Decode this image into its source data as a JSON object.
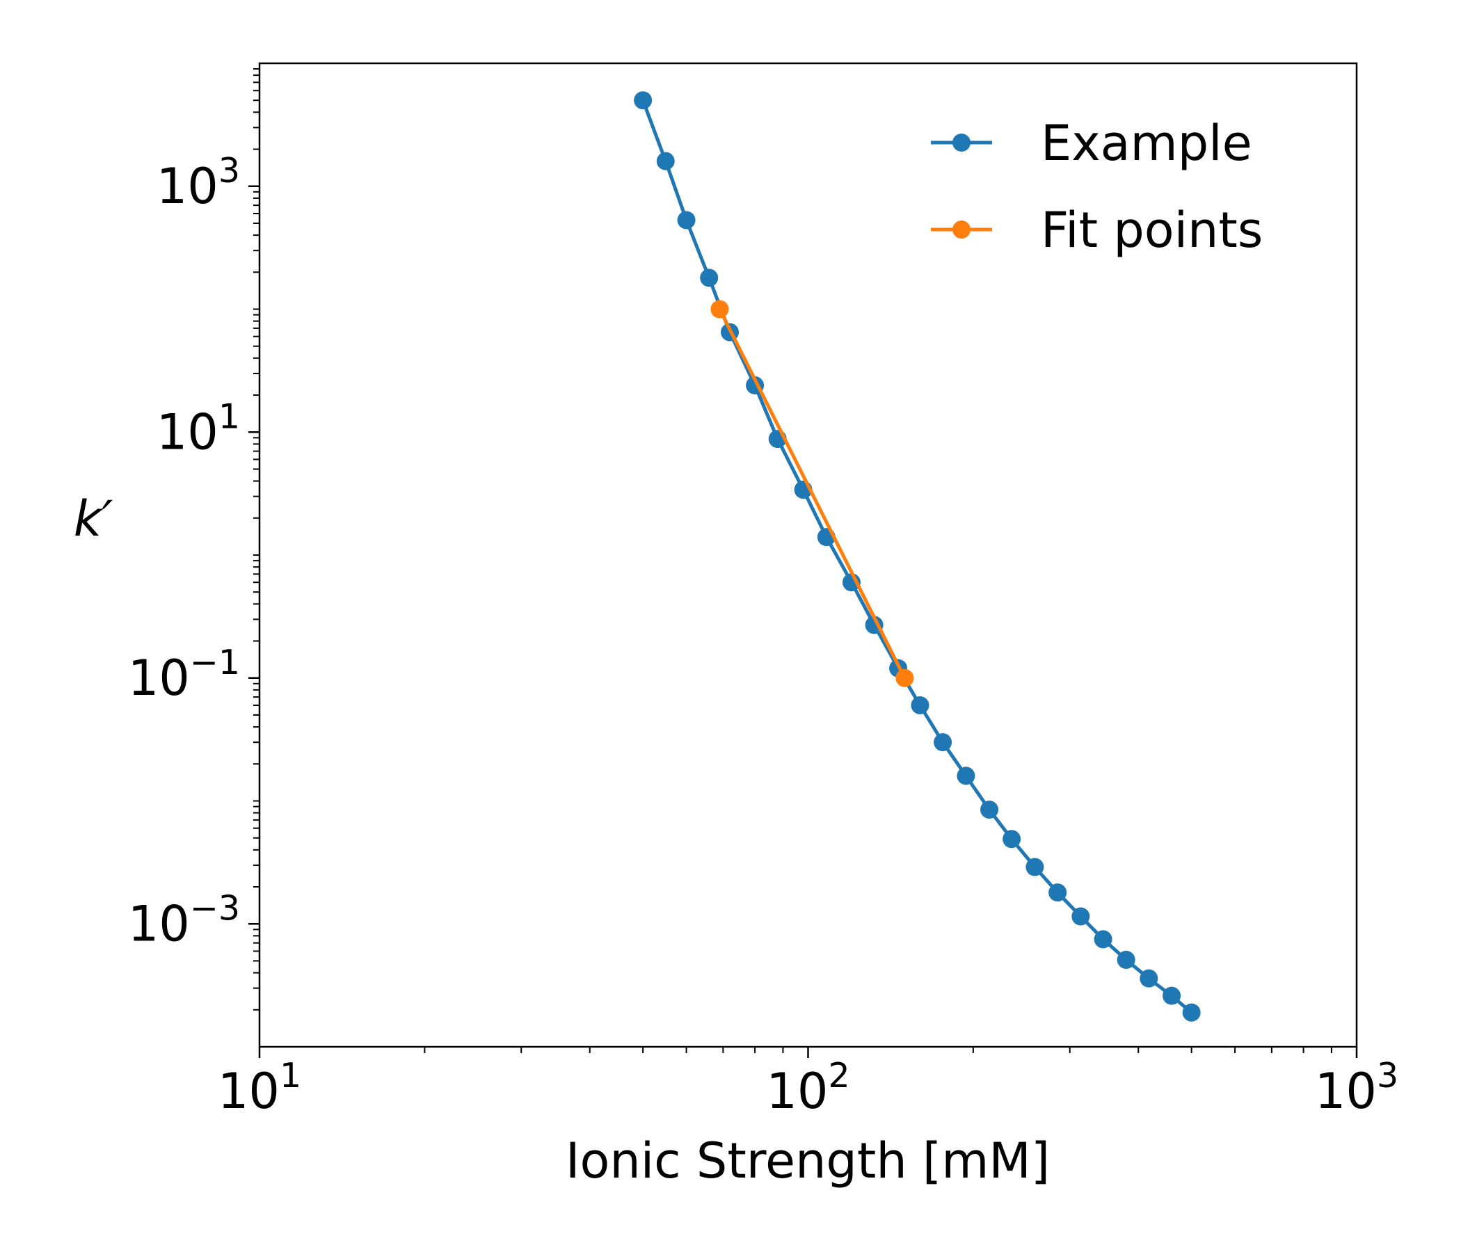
{
  "chart_data": {
    "type": "line",
    "xlabel": "Ionic Strength [mM]",
    "ylabel": "k′",
    "xscale": "log",
    "yscale": "log",
    "xlim": [
      10,
      1000
    ],
    "ylim": [
      0.0001,
      10000
    ],
    "xticks": [
      {
        "value": 10,
        "base": "10",
        "exp": "1"
      },
      {
        "value": 100,
        "base": "10",
        "exp": "2"
      },
      {
        "value": 1000,
        "base": "10",
        "exp": "3"
      }
    ],
    "yticks": [
      {
        "value": 0.001,
        "base": "10",
        "exp": "−3"
      },
      {
        "value": 0.1,
        "base": "10",
        "exp": "−1"
      },
      {
        "value": 10,
        "base": "10",
        "exp": "1"
      },
      {
        "value": 1000,
        "base": "10",
        "exp": "3"
      }
    ],
    "grid": false,
    "legend_position": "top-right",
    "series": [
      {
        "name": "Example",
        "color": "#1f77b4",
        "x": [
          50,
          55,
          60,
          66,
          72,
          80,
          88,
          98,
          108,
          120,
          132,
          146,
          160,
          176,
          194,
          214,
          235,
          259,
          285,
          314,
          345,
          380,
          418,
          460,
          500
        ],
        "y": [
          5000,
          1600,
          530,
          180,
          65,
          24,
          8.8,
          3.4,
          1.4,
          0.6,
          0.27,
          0.12,
          0.06,
          0.03,
          0.016,
          0.0085,
          0.0049,
          0.0029,
          0.0018,
          0.00115,
          0.00075,
          0.00051,
          0.00036,
          0.00026,
          0.00019
        ]
      },
      {
        "name": "Fit points",
        "color": "#ff7f0e",
        "x": [
          69,
          150
        ],
        "y": [
          100,
          0.1
        ]
      }
    ]
  }
}
